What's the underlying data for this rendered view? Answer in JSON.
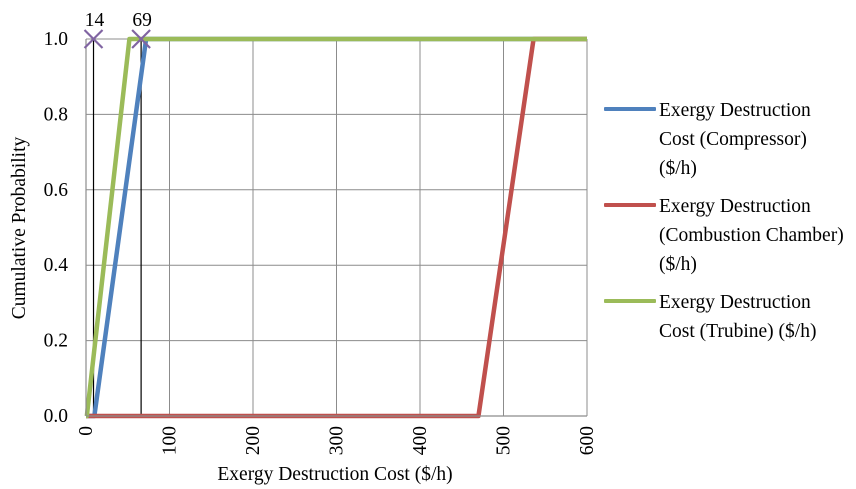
{
  "chart_data": {
    "type": "line",
    "xlabel": "Exergy Destruction Cost ($/h)",
    "ylabel": "Cumulative Probability",
    "xlim": [
      0,
      600
    ],
    "ylim": [
      0,
      1
    ],
    "xticks": [
      0,
      100,
      200,
      300,
      400,
      500,
      600
    ],
    "yticks": [
      0.0,
      0.2,
      0.4,
      0.6,
      0.8,
      1.0
    ],
    "xtick_labels": [
      "0",
      "100",
      "200",
      "300",
      "400",
      "500",
      "600"
    ],
    "ytick_labels": [
      "0.0",
      "0.2",
      "0.4",
      "0.6",
      "0.8",
      "1.0"
    ],
    "grid": true,
    "legend_position": "right",
    "series": [
      {
        "name": "Exergy Destruction Cost (Compressor) ($/h)",
        "color": "#4f81bd",
        "x": [
          0,
          10,
          72,
          600
        ],
        "y": [
          0,
          0,
          1,
          1
        ]
      },
      {
        "name": "Exergy Destruction (Combustion Chamber) ($/h)",
        "color": "#c0504d",
        "x": [
          0,
          470,
          536,
          600
        ],
        "y": [
          0,
          0,
          1,
          1
        ]
      },
      {
        "name": "Exergy Destruction Cost (Trubine) ($/h)",
        "color": "#9bbb59",
        "x": [
          0,
          1,
          52,
          600
        ],
        "y": [
          0,
          0,
          1,
          1
        ]
      }
    ],
    "annotations": [
      {
        "label": "14",
        "x": 9,
        "y": 1.0,
        "marker": "x",
        "color": "#8064a2"
      },
      {
        "label": "69",
        "x": 66,
        "y": 1.0,
        "marker": "x",
        "color": "#8064a2"
      }
    ],
    "reference_lines": [
      {
        "x": 9
      },
      {
        "x": 66
      }
    ]
  },
  "legend": {
    "items": [
      {
        "label": "Exergy Destruction Cost (Compressor) ($/h)",
        "color": "#4f81bd"
      },
      {
        "label": "Exergy Destruction (Combustion Chamber) ($/h)",
        "color": "#c0504d"
      },
      {
        "label": "Exergy Destruction Cost (Trubine) ($/h)",
        "color": "#9bbb59"
      }
    ]
  }
}
